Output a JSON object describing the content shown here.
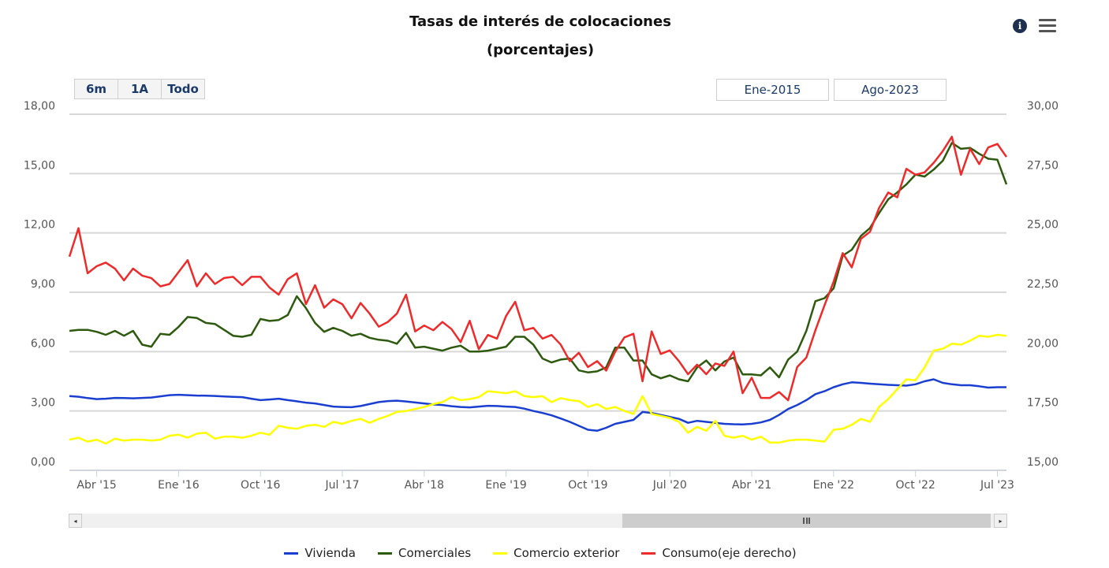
{
  "title": "Tasas de interés de colocaciones",
  "subtitle": "(porcentajes)",
  "icons": {
    "info": "info-icon",
    "menu": "hamburger-menu-icon"
  },
  "range_selector": {
    "buttons": [
      "6m",
      "1A",
      "Todo"
    ],
    "from": "Ene-2015",
    "to": "Ago-2023"
  },
  "navigator": {
    "left_arrow": "◂",
    "right_arrow": "▸"
  },
  "chart_data": {
    "type": "line",
    "title": "Tasas de interés de colocaciones",
    "subtitle": "(porcentajes)",
    "x_ticks": [
      "Abr '15",
      "Ene '16",
      "Oct '16",
      "Jul '17",
      "Abr '18",
      "Ene '19",
      "Oct '19",
      "Jul '20",
      "Abr '21",
      "Ene '22",
      "Oct '22",
      "Jul '23"
    ],
    "x_range": [
      "2015-01",
      "2023-08"
    ],
    "y_left": {
      "ticks": [
        "0,00",
        "3,00",
        "6,00",
        "9,00",
        "12,00",
        "15,00",
        "18,00"
      ],
      "min": 0,
      "max": 18
    },
    "y_right": {
      "ticks": [
        "15,00",
        "17,50",
        "20,00",
        "22,50",
        "25,00",
        "27,50",
        "30,00"
      ],
      "min": 15,
      "max": 30
    },
    "grid": true,
    "legend_position": "bottom",
    "x_months": [
      "2015-01",
      "2015-02",
      "2015-03",
      "2015-04",
      "2015-05",
      "2015-06",
      "2015-07",
      "2015-08",
      "2015-09",
      "2015-10",
      "2015-11",
      "2015-12",
      "2016-01",
      "2016-02",
      "2016-03",
      "2016-04",
      "2016-05",
      "2016-06",
      "2016-07",
      "2016-08",
      "2016-09",
      "2016-10",
      "2016-11",
      "2016-12",
      "2017-01",
      "2017-02",
      "2017-03",
      "2017-04",
      "2017-05",
      "2017-06",
      "2017-07",
      "2017-08",
      "2017-09",
      "2017-10",
      "2017-11",
      "2017-12",
      "2018-01",
      "2018-02",
      "2018-03",
      "2018-04",
      "2018-05",
      "2018-06",
      "2018-07",
      "2018-08",
      "2018-09",
      "2018-10",
      "2018-11",
      "2018-12",
      "2019-01",
      "2019-02",
      "2019-03",
      "2019-04",
      "2019-05",
      "2019-06",
      "2019-07",
      "2019-08",
      "2019-09",
      "2019-10",
      "2019-11",
      "2019-12",
      "2020-01",
      "2020-02",
      "2020-03",
      "2020-04",
      "2020-05",
      "2020-06",
      "2020-07",
      "2020-08",
      "2020-09",
      "2020-10",
      "2020-11",
      "2020-12",
      "2021-01",
      "2021-02",
      "2021-03",
      "2021-04",
      "2021-05",
      "2021-06",
      "2021-07",
      "2021-08",
      "2021-09",
      "2021-10",
      "2021-11",
      "2021-12",
      "2022-01",
      "2022-02",
      "2022-03",
      "2022-04",
      "2022-05",
      "2022-06",
      "2022-07",
      "2022-08",
      "2022-09",
      "2022-10",
      "2022-11",
      "2022-12",
      "2023-01",
      "2023-02",
      "2023-03",
      "2023-04",
      "2023-05",
      "2023-06",
      "2023-07",
      "2023-08"
    ],
    "series": [
      {
        "name": "Vivienda",
        "axis": "left",
        "color": "#1a3fd0",
        "values": [
          3.75,
          3.72,
          3.65,
          3.6,
          3.62,
          3.66,
          3.65,
          3.64,
          3.66,
          3.68,
          3.74,
          3.8,
          3.82,
          3.8,
          3.78,
          3.77,
          3.76,
          3.73,
          3.71,
          3.7,
          3.62,
          3.55,
          3.58,
          3.62,
          3.55,
          3.49,
          3.42,
          3.38,
          3.3,
          3.22,
          3.2,
          3.19,
          3.25,
          3.35,
          3.45,
          3.5,
          3.52,
          3.48,
          3.43,
          3.38,
          3.33,
          3.3,
          3.24,
          3.2,
          3.18,
          3.22,
          3.26,
          3.25,
          3.22,
          3.2,
          3.12,
          3.0,
          2.9,
          2.78,
          2.62,
          2.45,
          2.25,
          2.05,
          2.0,
          2.15,
          2.35,
          2.45,
          2.55,
          2.95,
          2.9,
          2.8,
          2.7,
          2.6,
          2.4,
          2.5,
          2.45,
          2.4,
          2.35,
          2.33,
          2.32,
          2.35,
          2.42,
          2.55,
          2.8,
          3.1,
          3.3,
          3.55,
          3.85,
          4.0,
          4.2,
          4.35,
          4.45,
          4.42,
          4.38,
          4.35,
          4.32,
          4.3,
          4.28,
          4.35,
          4.5,
          4.6,
          4.42,
          4.35,
          4.3,
          4.3,
          4.25,
          4.18,
          4.2,
          4.2
        ]
      },
      {
        "name": "Comerciales",
        "axis": "left",
        "color": "#2d5a0e",
        "values": [
          7.05,
          7.1,
          7.1,
          7.0,
          6.85,
          7.05,
          6.8,
          7.05,
          6.35,
          6.25,
          6.9,
          6.85,
          7.25,
          7.75,
          7.7,
          7.45,
          7.4,
          7.1,
          6.8,
          6.75,
          6.85,
          7.65,
          7.55,
          7.6,
          7.85,
          8.8,
          8.2,
          7.45,
          7.0,
          7.2,
          7.05,
          6.8,
          6.9,
          6.7,
          6.6,
          6.55,
          6.4,
          6.95,
          6.2,
          6.25,
          6.15,
          6.05,
          6.2,
          6.3,
          6.0,
          6.0,
          6.05,
          6.15,
          6.25,
          6.75,
          6.75,
          6.35,
          5.65,
          5.45,
          5.6,
          5.65,
          5.05,
          4.95,
          5.0,
          5.2,
          6.2,
          6.2,
          5.55,
          5.55,
          4.85,
          4.65,
          4.8,
          4.6,
          4.5,
          5.2,
          5.55,
          5.05,
          5.5,
          5.7,
          4.85,
          4.85,
          4.8,
          5.2,
          4.7,
          5.6,
          6.0,
          7.05,
          8.55,
          8.7,
          9.2,
          10.85,
          11.15,
          11.85,
          12.25,
          13.0,
          13.7,
          14.05,
          14.45,
          14.95,
          14.85,
          15.2,
          15.65,
          16.55,
          16.25,
          16.3,
          16.0,
          15.75,
          15.7,
          14.45
        ]
      },
      {
        "name": "Comercio exterior",
        "axis": "left",
        "color": "#ffff00",
        "values": [
          1.55,
          1.65,
          1.45,
          1.55,
          1.35,
          1.6,
          1.5,
          1.55,
          1.55,
          1.5,
          1.55,
          1.75,
          1.8,
          1.65,
          1.85,
          1.9,
          1.6,
          1.7,
          1.7,
          1.65,
          1.75,
          1.9,
          1.8,
          2.25,
          2.15,
          2.1,
          2.25,
          2.3,
          2.2,
          2.45,
          2.35,
          2.5,
          2.6,
          2.4,
          2.6,
          2.75,
          2.95,
          3.0,
          3.1,
          3.2,
          3.35,
          3.45,
          3.7,
          3.55,
          3.6,
          3.7,
          4.0,
          3.95,
          3.9,
          4.0,
          3.75,
          3.7,
          3.75,
          3.45,
          3.65,
          3.55,
          3.5,
          3.2,
          3.35,
          3.1,
          3.2,
          3.0,
          2.85,
          3.75,
          2.85,
          2.75,
          2.65,
          2.45,
          1.9,
          2.2,
          2.0,
          2.5,
          1.75,
          1.65,
          1.75,
          1.55,
          1.7,
          1.4,
          1.4,
          1.5,
          1.55,
          1.55,
          1.5,
          1.45,
          2.05,
          2.1,
          2.3,
          2.6,
          2.45,
          3.2,
          3.6,
          4.1,
          4.6,
          4.55,
          5.2,
          6.05,
          6.15,
          6.4,
          6.35,
          6.55,
          6.8,
          6.75,
          6.85,
          6.8
        ]
      },
      {
        "name": "Consumo(eje derecho)",
        "axis": "right",
        "color": "#ee2a2a",
        "values": [
          24.0,
          25.2,
          23.3,
          23.6,
          23.75,
          23.5,
          23.0,
          23.5,
          23.2,
          23.1,
          22.75,
          22.85,
          23.35,
          23.85,
          22.75,
          23.3,
          22.85,
          23.1,
          23.15,
          22.8,
          23.15,
          23.15,
          22.7,
          22.4,
          23.05,
          23.3,
          22.0,
          22.8,
          21.85,
          22.2,
          22.0,
          21.4,
          22.05,
          21.6,
          21.05,
          21.25,
          21.6,
          22.4,
          20.85,
          21.1,
          20.9,
          21.25,
          20.95,
          20.4,
          21.3,
          20.1,
          20.7,
          20.55,
          21.5,
          22.1,
          20.9,
          21.0,
          20.55,
          20.7,
          20.3,
          19.6,
          19.95,
          19.35,
          19.6,
          19.2,
          20.0,
          20.6,
          20.75,
          18.75,
          20.85,
          19.9,
          20.05,
          19.6,
          19.05,
          19.45,
          19.05,
          19.5,
          19.4,
          20.0,
          18.25,
          18.9,
          18.05,
          18.05,
          18.3,
          17.95,
          19.35,
          19.75,
          20.9,
          21.95,
          22.95,
          24.15,
          23.55,
          24.75,
          25.05,
          26.05,
          26.7,
          26.5,
          27.7,
          27.45,
          27.55,
          27.95,
          28.45,
          29.05,
          27.45,
          28.55,
          27.9,
          28.6,
          28.75,
          28.2
        ]
      }
    ]
  }
}
